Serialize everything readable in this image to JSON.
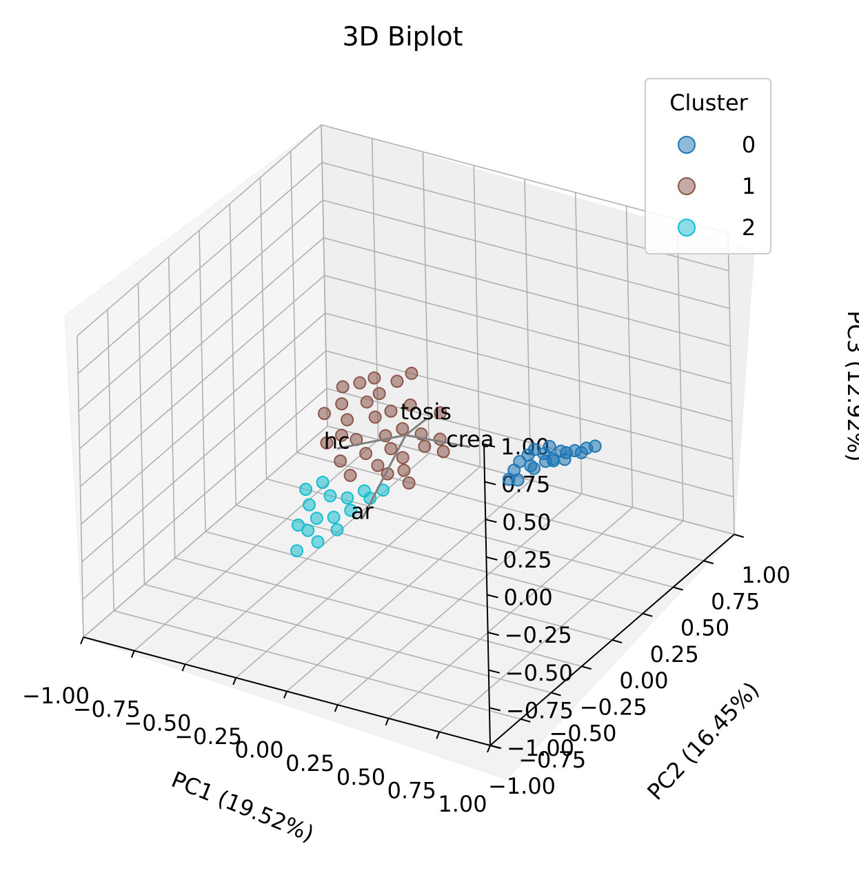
{
  "chart_data": {
    "type": "scatter",
    "title": "3D Biplot",
    "xlabel": "PC1 (19.52%)",
    "ylabel": "PC2 (16.45%)",
    "zlabel": "PC3 (12.92%)",
    "xlim": [
      -1,
      1
    ],
    "ylim": [
      -1,
      1
    ],
    "zlim": [
      -1,
      1
    ],
    "x_ticks": [
      "−1.00",
      "−0.75",
      "−0.50",
      "−0.25",
      "0.00",
      "0.25",
      "0.50",
      "0.75",
      "1.00"
    ],
    "y_ticks": [
      "−1.00",
      "−0.75",
      "−0.50",
      "−0.25",
      "0.00",
      "0.25",
      "0.50",
      "0.75",
      "1.00"
    ],
    "z_ticks": [
      "−1.00",
      "−0.75",
      "−0.50",
      "−0.25",
      "0.00",
      "0.25",
      "0.50",
      "0.75",
      "1.00"
    ],
    "grid": true,
    "legend": {
      "title": "Cluster",
      "placement": "top-right",
      "entries": [
        "0",
        "1",
        "2"
      ]
    },
    "series": [
      {
        "name": "0",
        "color": "#1f77b4",
        "points": [
          [
            0.56,
            0.07,
            0.02
          ],
          [
            0.62,
            0.1,
            0.03
          ],
          [
            0.68,
            0.14,
            0.04
          ],
          [
            0.73,
            0.17,
            0.04
          ],
          [
            0.59,
            0.04,
            -0.02
          ],
          [
            0.64,
            0.08,
            0.0
          ],
          [
            0.71,
            0.12,
            0.01
          ],
          [
            0.77,
            0.2,
            0.05
          ],
          [
            0.52,
            0.02,
            -0.06
          ],
          [
            0.55,
            0.0,
            -0.1
          ],
          [
            0.6,
            0.05,
            -0.04
          ],
          [
            0.66,
            0.11,
            -0.01
          ],
          [
            0.7,
            0.15,
            0.03
          ],
          [
            0.75,
            0.19,
            0.02
          ],
          [
            0.8,
            0.22,
            0.06
          ],
          [
            0.58,
            0.09,
            0.05
          ],
          [
            0.63,
            0.13,
            0.06
          ],
          [
            0.53,
            0.05,
            -0.02
          ],
          [
            0.5,
            0.01,
            -0.12
          ],
          [
            0.67,
            0.09,
            0.02
          ]
        ]
      },
      {
        "name": "1",
        "color": "#8c564b",
        "points": [
          [
            -0.38,
            0.12,
            0.1
          ],
          [
            -0.32,
            0.16,
            0.12
          ],
          [
            -0.25,
            0.1,
            0.06
          ],
          [
            -0.18,
            0.05,
            0.02
          ],
          [
            -0.1,
            0.0,
            -0.04
          ],
          [
            -0.05,
            -0.04,
            -0.08
          ],
          [
            0.02,
            -0.06,
            -0.1
          ],
          [
            0.08,
            0.02,
            -0.06
          ],
          [
            -0.3,
            0.02,
            -0.02
          ],
          [
            -0.22,
            -0.04,
            -0.08
          ],
          [
            -0.15,
            -0.08,
            -0.12
          ],
          [
            -0.08,
            -0.1,
            -0.16
          ],
          [
            -0.02,
            -0.12,
            -0.18
          ],
          [
            -0.35,
            0.06,
            0.04
          ],
          [
            -0.28,
            -0.06,
            -0.06
          ],
          [
            -0.2,
            0.12,
            0.12
          ],
          [
            -0.12,
            0.08,
            0.06
          ],
          [
            -0.04,
            0.04,
            0.0
          ],
          [
            0.04,
            0.06,
            -0.02
          ],
          [
            0.12,
            0.08,
            -0.04
          ],
          [
            -0.26,
            0.18,
            0.16
          ],
          [
            -0.16,
            0.2,
            0.16
          ],
          [
            -0.06,
            0.14,
            0.08
          ],
          [
            -0.4,
            0.0,
            0.0
          ],
          [
            -0.33,
            -0.1,
            -0.1
          ],
          [
            -0.24,
            -0.14,
            -0.16
          ],
          [
            0.0,
            -0.02,
            -0.22
          ],
          [
            0.06,
            -0.08,
            -0.24
          ],
          [
            -0.1,
            0.22,
            0.22
          ],
          [
            0.1,
            0.12,
            0.1
          ],
          [
            0.16,
            0.04,
            -0.08
          ],
          [
            -0.18,
            -0.16,
            -0.22
          ]
        ]
      },
      {
        "name": "2",
        "color": "#17becf",
        "points": [
          [
            -0.28,
            -0.22,
            -0.26
          ],
          [
            -0.22,
            -0.26,
            -0.3
          ],
          [
            -0.16,
            -0.22,
            -0.32
          ],
          [
            -0.1,
            -0.18,
            -0.28
          ],
          [
            -0.3,
            -0.3,
            -0.36
          ],
          [
            -0.24,
            -0.34,
            -0.4
          ],
          [
            -0.18,
            -0.3,
            -0.4
          ],
          [
            -0.12,
            -0.26,
            -0.36
          ],
          [
            -0.34,
            -0.26,
            -0.3
          ],
          [
            -0.26,
            -0.38,
            -0.46
          ],
          [
            -0.2,
            -0.4,
            -0.5
          ],
          [
            -0.14,
            -0.34,
            -0.44
          ],
          [
            -0.06,
            -0.2,
            -0.3
          ],
          [
            -0.32,
            -0.36,
            -0.46
          ],
          [
            -0.28,
            -0.44,
            -0.56
          ],
          [
            -0.02,
            -0.16,
            -0.26
          ]
        ]
      }
    ],
    "loadings": [
      {
        "label": "hc",
        "vector": [
          -0.28,
          -0.1,
          -0.12
        ]
      },
      {
        "label": "ar",
        "vector": [
          -0.04,
          -0.3,
          -0.36
        ]
      },
      {
        "label": "tosis",
        "vector": [
          0.04,
          0.1,
          0.05
        ]
      },
      {
        "label": "crea",
        "vector": [
          0.28,
          0.06,
          -0.02
        ]
      }
    ]
  }
}
